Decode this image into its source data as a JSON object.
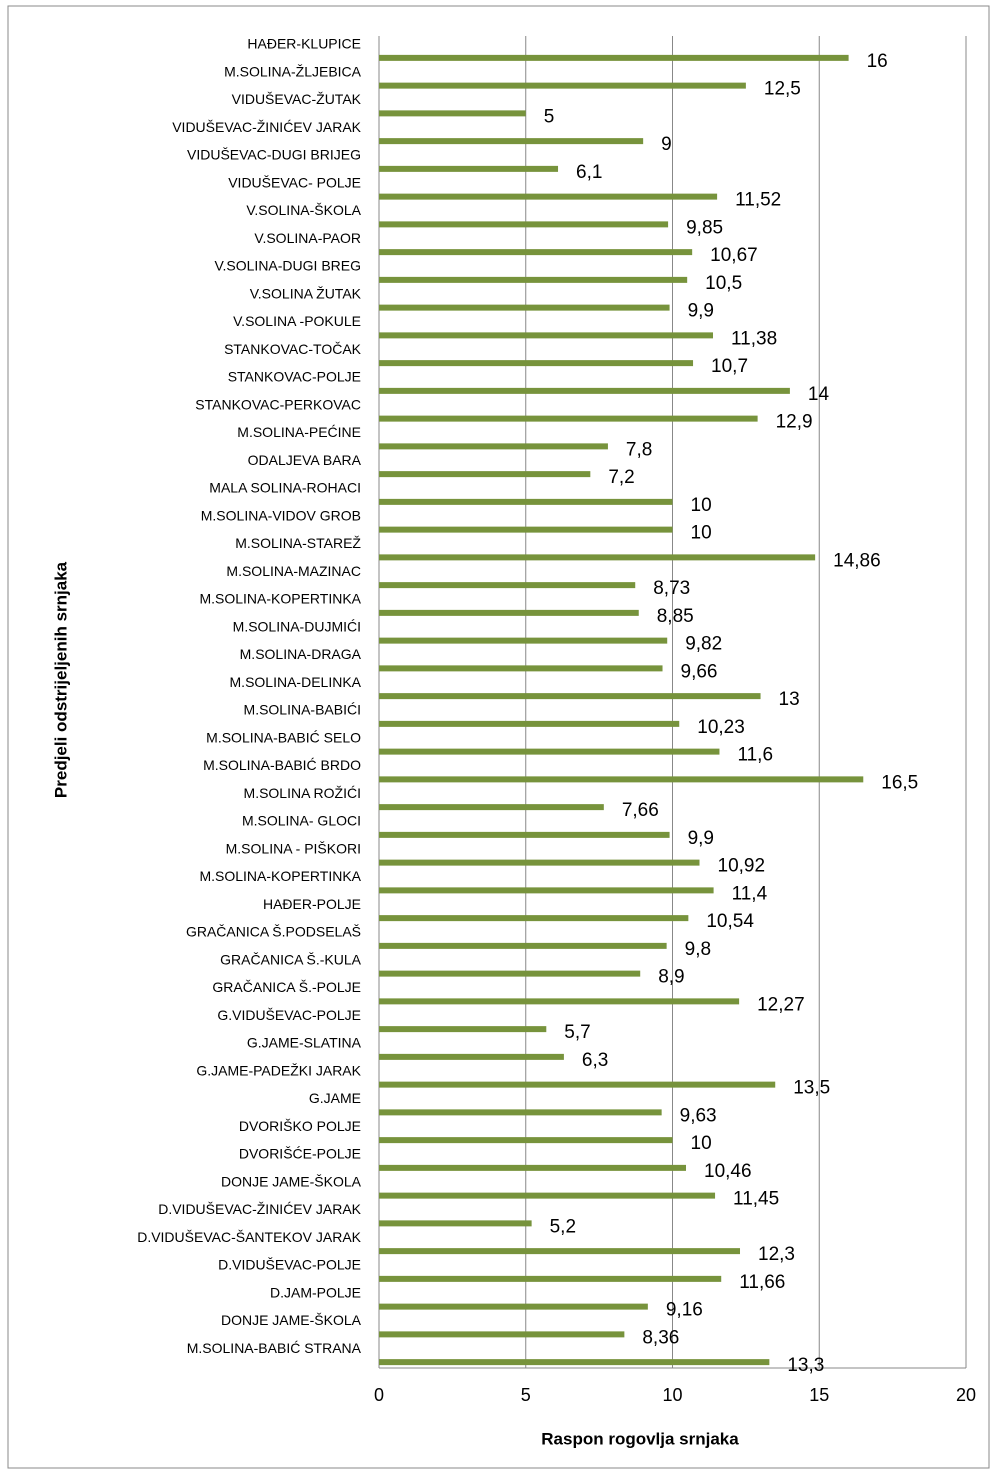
{
  "chart_data": {
    "type": "bar",
    "orientation": "horizontal",
    "y_axis_label": "Predjeli odstrijeljenih srnjaka",
    "x_axis_label": "Raspon rogovlja srnjaka",
    "color": "#77933c",
    "grid": true,
    "xlim": [
      0,
      20
    ],
    "xticks": [
      0,
      5,
      10,
      15,
      20
    ],
    "categories": [
      "HAĐER-KLUPICE",
      "M.SOLINA-ŽLJEBICA",
      "VIDUŠEVAC-ŽUTAK",
      "VIDUŠEVAC-ŽINIĆEV JARAK",
      "VIDUŠEVAC-DUGI BRIJEG",
      "VIDUŠEVAC- POLJE",
      "V.SOLINA-ŠKOLA",
      "V.SOLINA-PAOR",
      "V.SOLINA-DUGI BREG",
      "V.SOLINA ŽUTAK",
      "V.SOLINA -POKULE",
      "STANKOVAC-TOČAK",
      "STANKOVAC-POLJE",
      "STANKOVAC-PERKOVAC",
      "M.SOLINA-PEĆINE",
      "ODALJEVA BARA",
      "MALA SOLINA-ROHACI",
      "M.SOLINA-VIDOV GROB",
      "M.SOLINA-STAREŽ",
      "M.SOLINA-MAZINAC",
      "M.SOLINA-KOPERTINKA",
      "M.SOLINA-DUJMIĆI",
      "M.SOLINA-DRAGA",
      "M.SOLINA-DELINKA",
      "M.SOLINA-BABIĆI",
      "M.SOLINA-BABIĆ SELO",
      "M.SOLINA-BABIĆ BRDO",
      "M.SOLINA ROŽIĆI",
      "M.SOLINA- GLOCI",
      "M.SOLINA - PIŠKORI",
      "M.SOLINA-KOPERTINKA",
      "HAĐER-POLJE",
      "GRAČANICA Š.PODSELAŠ",
      "GRAČANICA Š.-KULA",
      "GRAČANICA Š.-POLJE",
      "G.VIDUŠEVAC-POLJE",
      "G.JAME-SLATINA",
      "G.JAME-PADEŽKI JARAK",
      "G.JAME",
      "DVORIŠKO POLJE",
      "DVORIŠĆE-POLJE",
      "DONJE JAME-ŠKOLA",
      "D.VIDUŠEVAC-ŽINIĆEV JARAK",
      "D.VIDUŠEVAC-ŠANTEKOV JARAK",
      "D.VIDUŠEVAC-POLJE",
      "D.JAM-POLJE",
      "DONJE JAME-ŠKOLA",
      "M.SOLINA-BABIĆ STRANA"
    ],
    "values": [
      16,
      12.5,
      5,
      9,
      6.1,
      11.52,
      9.85,
      10.67,
      10.5,
      9.9,
      11.38,
      10.7,
      14,
      12.9,
      7.8,
      7.2,
      10,
      10,
      14.86,
      8.73,
      8.85,
      9.82,
      9.66,
      13,
      10.23,
      11.6,
      16.5,
      7.66,
      9.9,
      10.92,
      11.4,
      10.54,
      9.8,
      8.9,
      12.27,
      5.7,
      6.3,
      13.5,
      9.63,
      10,
      10.46,
      11.45,
      5.2,
      12.3,
      11.66,
      9.16,
      8.36,
      13.3
    ],
    "value_labels": [
      "16",
      "12,5",
      "5",
      "9",
      "6,1",
      "11,52",
      "9,85",
      "10,67",
      "10,5",
      "9,9",
      "11,38",
      "10,7",
      "14",
      "12,9",
      "7,8",
      "7,2",
      "10",
      "10",
      "14,86",
      "8,73",
      "8,85",
      "9,82",
      "9,66",
      "13",
      "10,23",
      "11,6",
      "16,5",
      "7,66",
      "9,9",
      "10,92",
      "11,4",
      "10,54",
      "9,8",
      "8,9",
      "12,27",
      "5,7",
      "6,3",
      "13,5",
      "9,63",
      "10",
      "10,46",
      "11,45",
      "5,2",
      "12,3",
      "11,66",
      "9,16",
      "8,36",
      "13,3"
    ]
  }
}
